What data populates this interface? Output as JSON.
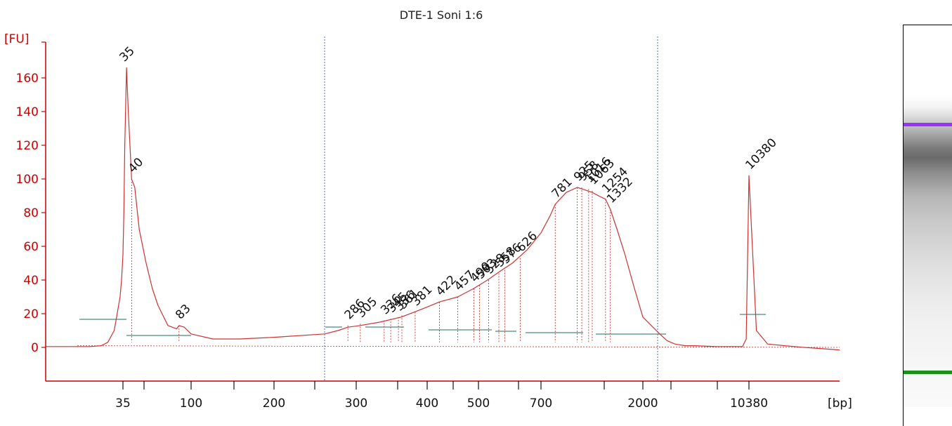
{
  "chart_data": {
    "type": "line",
    "title": "DTE-1 Soni 1:6",
    "ylabel": "[FU]",
    "xlabel": "[bp]",
    "ylim": [
      -20,
      170
    ],
    "yticks": [
      0,
      20,
      40,
      60,
      80,
      100,
      120,
      140,
      160
    ],
    "xtick_labels": [
      "35",
      "100",
      "200",
      "300",
      "400",
      "500",
      "700",
      "2000",
      "10380"
    ],
    "series": [
      {
        "color": "#cc3333",
        "x": [
          25,
          28,
          30,
          32,
          33,
          34,
          34.5,
          35,
          35.5,
          36,
          37,
          38,
          40,
          42,
          45,
          50,
          55,
          60,
          70,
          80,
          83,
          90,
          100,
          120,
          150,
          200,
          250,
          270,
          286,
          305,
          330,
          360,
          380,
          400,
          422,
          457,
          490,
          525,
          560,
          600,
          650,
          700,
          750,
          781,
          850,
          925,
          963,
          1000,
          1063,
          1150,
          1254,
          1332,
          1450,
          1600,
          1800,
          2000,
          2300,
          2700,
          3200,
          4000,
          5000,
          6500,
          8000,
          9500,
          10000,
          10380,
          10700,
          11200,
          12000,
          13000,
          15000
        ],
        "y": [
          0.5,
          1,
          3,
          10,
          20,
          30,
          40,
          55,
          80,
          120,
          166,
          140,
          100,
          95,
          70,
          50,
          35,
          25,
          13,
          11,
          13,
          12,
          8,
          5,
          5,
          6,
          8,
          10,
          12,
          13,
          15,
          18,
          21,
          24,
          27,
          30,
          35,
          40,
          45,
          50,
          58,
          68,
          78,
          85,
          92,
          95,
          94,
          93,
          92,
          90,
          88,
          82,
          70,
          55,
          35,
          18,
          8,
          4,
          2,
          1,
          1,
          0.5,
          0.5,
          0.5,
          5,
          102,
          10,
          2,
          1,
          0,
          -1.5
        ]
      }
    ],
    "peak_labels": [
      {
        "label": "35",
        "x": 35,
        "y": 166,
        "color": "#1a8f1a"
      },
      {
        "label": "40",
        "x": 40,
        "y": 100,
        "color": "#111111"
      },
      {
        "label": "83",
        "x": 83,
        "y": 13,
        "color": "#111111"
      },
      {
        "label": "286",
        "x": 286,
        "y": 13,
        "color": "#111111"
      },
      {
        "label": "305",
        "x": 305,
        "y": 14,
        "color": "#111111"
      },
      {
        "label": "336",
        "x": 336,
        "y": 16,
        "color": "#111111"
      },
      {
        "label": "345",
        "x": 345,
        "y": 17,
        "color": "#111111"
      },
      {
        "label": "356",
        "x": 356,
        "y": 18,
        "color": "#111111"
      },
      {
        "label": "361",
        "x": 361,
        "y": 19,
        "color": "#111111"
      },
      {
        "label": "381",
        "x": 381,
        "y": 21,
        "color": "#111111"
      },
      {
        "label": "422",
        "x": 422,
        "y": 27,
        "color": "#111111"
      },
      {
        "label": "457",
        "x": 457,
        "y": 30,
        "color": "#111111"
      },
      {
        "label": "490",
        "x": 490,
        "y": 35,
        "color": "#111111"
      },
      {
        "label": "503",
        "x": 503,
        "y": 37,
        "color": "#111111"
      },
      {
        "label": "528",
        "x": 528,
        "y": 40,
        "color": "#111111"
      },
      {
        "label": "558",
        "x": 558,
        "y": 44,
        "color": "#111111"
      },
      {
        "label": "576",
        "x": 576,
        "y": 46,
        "color": "#111111"
      },
      {
        "label": "626",
        "x": 626,
        "y": 53,
        "color": "#111111"
      },
      {
        "label": "781",
        "x": 781,
        "y": 85,
        "color": "#111111"
      },
      {
        "label": "925",
        "x": 925,
        "y": 95,
        "color": "#111111"
      },
      {
        "label": "958",
        "x": 958,
        "y": 95,
        "color": "#111111"
      },
      {
        "label": "1016",
        "x": 1016,
        "y": 94,
        "color": "#111111"
      },
      {
        "label": "1063",
        "x": 1063,
        "y": 93,
        "color": "#111111"
      },
      {
        "label": "1254",
        "x": 1254,
        "y": 88,
        "color": "#111111"
      },
      {
        "label": "1332",
        "x": 1332,
        "y": 82,
        "color": "#111111"
      },
      {
        "label": "10380",
        "x": 10380,
        "y": 102,
        "color": "#9b30ff"
      }
    ],
    "markers": [
      {
        "name": "lower",
        "x": 35,
        "color": "#1a8f1a"
      },
      {
        "name": "upper",
        "x": 10380,
        "color": "#9b30ff"
      }
    ],
    "grid": false,
    "legend": "none"
  }
}
